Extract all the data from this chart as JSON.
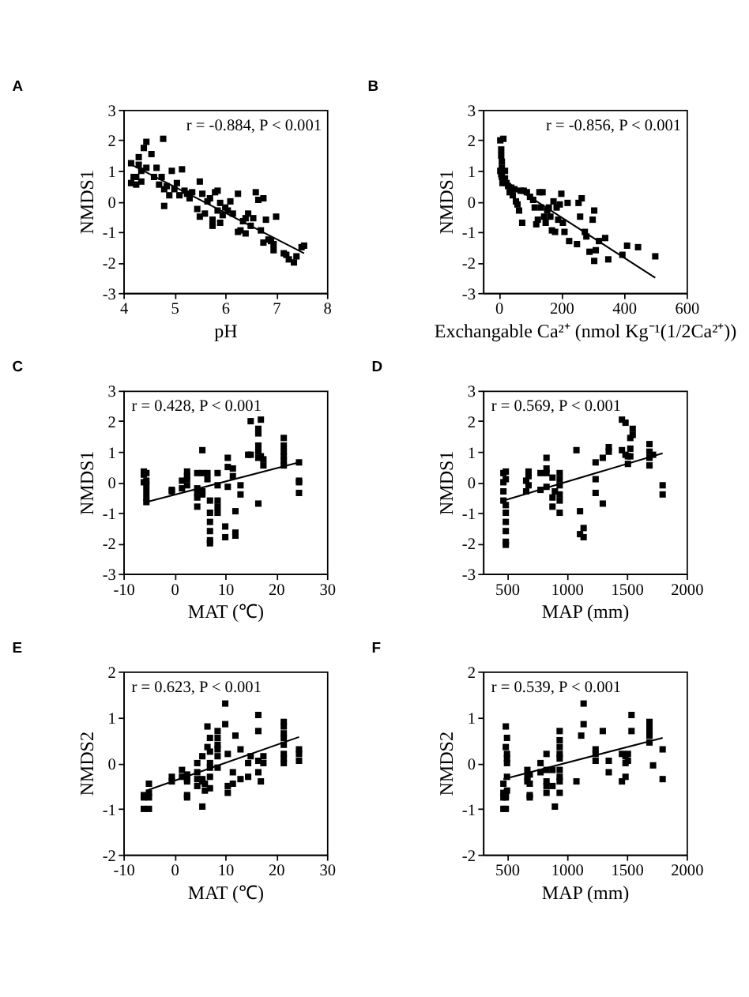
{
  "chart_data": [
    {
      "type": "scatter",
      "title": "A",
      "xlabel": "pH",
      "ylabel": "NMDS1",
      "xlim": [
        4,
        8
      ],
      "xticks": [
        4,
        5,
        6,
        7,
        8
      ],
      "ylim": [
        -3,
        3
      ],
      "yticks": [
        -3,
        -2,
        -1,
        0,
        1,
        2,
        3
      ],
      "grid": false,
      "marker": "square",
      "annotations": [
        "r = -0.884, P < 0.001"
      ],
      "series": [
        {
          "type": "scatter",
          "color": "#000000",
          "x": [
            4.15,
            4.15,
            4.2,
            4.25,
            4.25,
            4.3,
            4.3,
            4.35,
            4.35,
            4.4,
            4.45,
            4.45,
            4.55,
            4.6,
            4.65,
            4.7,
            4.75,
            4.78,
            4.8,
            4.8,
            4.85,
            4.9,
            4.95,
            5.0,
            5.05,
            5.1,
            5.15,
            5.2,
            5.25,
            5.3,
            5.35,
            5.45,
            5.5,
            5.5,
            5.55,
            5.6,
            5.65,
            5.7,
            5.75,
            5.75,
            5.8,
            5.85,
            5.85,
            5.9,
            5.9,
            5.95,
            6.0,
            6.05,
            6.1,
            6.15,
            6.25,
            6.25,
            6.3,
            6.35,
            6.4,
            6.4,
            6.45,
            6.5,
            6.55,
            6.6,
            6.65,
            6.7,
            6.75,
            6.75,
            6.8,
            6.85,
            6.9,
            6.95,
            6.95,
            7.0,
            7.15,
            7.2,
            7.25,
            7.35,
            7.4,
            7.5,
            7.55
          ],
          "values": [
            1.25,
            0.6,
            0.8,
            0.8,
            0.55,
            1.45,
            1.2,
            1.0,
            0.65,
            1.75,
            1.95,
            1.1,
            1.55,
            0.8,
            1.1,
            0.55,
            0.8,
            2.05,
            0.4,
            -0.15,
            0.5,
            0.2,
            1.0,
            0.4,
            0.6,
            0.2,
            1.05,
            0.35,
            0.25,
            0.1,
            0.3,
            -0.25,
            0.65,
            -0.5,
            0.25,
            -0.4,
            0.0,
            0.1,
            -0.6,
            -0.8,
            0.3,
            0.35,
            -0.3,
            -0.7,
            -0.05,
            -0.45,
            -0.2,
            -0.3,
            0.0,
            -0.4,
            0.25,
            -1.0,
            -0.95,
            -0.65,
            -1.05,
            -0.55,
            -0.4,
            -0.8,
            -0.55,
            0.3,
            0.05,
            -0.95,
            -1.35,
            0.1,
            -0.6,
            -1.25,
            -1.3,
            -1.6,
            -1.4,
            -0.5,
            -1.7,
            -1.75,
            -1.9,
            -2.0,
            -1.8,
            -1.5,
            -1.45
          ]
        },
        {
          "type": "line",
          "marker": "none",
          "color": "#000000",
          "x": [
            4.1,
            7.55
          ],
          "values": [
            1.25,
            -1.7
          ]
        }
      ]
    },
    {
      "type": "scatter",
      "title": "B",
      "xlabel": "Exchangable Ca²⁺ (nmol Kg⁻¹(1/2Ca²⁺))",
      "ylabel": "NMDS1",
      "xlim": [
        -50,
        600
      ],
      "xticks": [
        0,
        200,
        400,
        600
      ],
      "ylim": [
        -3,
        3
      ],
      "yticks": [
        -3,
        -2,
        -1,
        0,
        1,
        2,
        3
      ],
      "grid": false,
      "marker": "square",
      "annotations": [
        "r = -0.856, P < 0.001"
      ],
      "series": [
        {
          "type": "scatter",
          "color": "#000000",
          "x": [
            5,
            8,
            8,
            10,
            10,
            5,
            8,
            10,
            12,
            15,
            20,
            20,
            25,
            30,
            35,
            40,
            45,
            50,
            55,
            60,
            65,
            70,
            75,
            80,
            90,
            100,
            110,
            115,
            120,
            125,
            130,
            135,
            140,
            145,
            150,
            155,
            160,
            165,
            170,
            175,
            180,
            185,
            190,
            195,
            200,
            205,
            210,
            220,
            225,
            250,
            255,
            260,
            265,
            275,
            280,
            290,
            300,
            305,
            305,
            310,
            320,
            340,
            350,
            395,
            410,
            445,
            500
          ],
          "values": [
            2.0,
            1.7,
            1.5,
            1.3,
            1.1,
            1.0,
            0.9,
            0.8,
            0.6,
            2.05,
            1.0,
            0.75,
            0.6,
            0.5,
            0.3,
            0.45,
            0.2,
            0.4,
            0.0,
            -0.1,
            -0.3,
            0.35,
            -0.7,
            0.35,
            0.3,
            0.15,
            0.05,
            -0.2,
            -0.75,
            -0.6,
            0.3,
            -0.2,
            0.3,
            -0.5,
            -0.7,
            -0.3,
            -0.2,
            -0.5,
            -0.95,
            0.0,
            -1.0,
            -0.2,
            -0.6,
            -0.1,
            0.25,
            -0.7,
            -1.0,
            -0.05,
            -1.3,
            -1.4,
            -0.05,
            -0.5,
            0.1,
            -1.0,
            -1.15,
            -1.65,
            -0.6,
            -1.95,
            -0.3,
            -1.6,
            -1.3,
            -1.2,
            -1.9,
            -1.75,
            -1.45,
            -1.5,
            -1.8
          ]
        },
        {
          "type": "line",
          "marker": "none",
          "color": "#000000",
          "x": [
            0,
            500
          ],
          "values": [
            0.8,
            -2.5
          ]
        }
      ]
    },
    {
      "type": "scatter",
      "title": "C",
      "xlabel": "MAT (℃)",
      "ylabel": "NMDS1",
      "xlim": [
        -10,
        30
      ],
      "xticks": [
        -10,
        0,
        10,
        20,
        30
      ],
      "ylim": [
        -3,
        3
      ],
      "yticks": [
        -3,
        -2,
        -1,
        0,
        1,
        2,
        3
      ],
      "grid": false,
      "marker": "square",
      "annotations": [
        "r = 0.428, P < 0.001"
      ],
      "series": [
        {
          "type": "scatter",
          "color": "#000000",
          "x": [
            -6,
            -6,
            -6,
            -5.5,
            -5.5,
            -5.5,
            -5.5,
            -5.5,
            -5.5,
            -0.5,
            -0.5,
            1.5,
            1.5,
            2.5,
            2.5,
            2.5,
            2.5,
            4.5,
            4.5,
            4.5,
            4.5,
            4.5,
            5.5,
            5.5,
            5.5,
            5.5,
            6.5,
            6.5,
            7,
            7,
            7,
            7,
            7,
            7,
            8.5,
            8.5,
            8.5,
            8.5,
            8.5,
            10,
            10,
            10.5,
            10.5,
            10.5,
            11.5,
            11.5,
            12,
            12,
            12,
            13,
            13,
            14.5,
            15,
            15,
            16.5,
            16.5,
            16.5,
            16.5,
            16.5,
            16.5,
            17,
            17,
            17.5,
            17.5,
            21.5,
            21.5,
            21.5,
            21.5,
            21.5,
            21.5,
            24.5,
            24.5,
            24.5,
            24.5
          ],
          "values": [
            0.35,
            0.25,
            0.0,
            0.3,
            -0.1,
            -0.3,
            -0.5,
            -0.65,
            0.05,
            -0.25,
            -0.3,
            0.05,
            -0.2,
            0.35,
            0.2,
            0.1,
            -0.1,
            0.3,
            -0.2,
            -0.35,
            -0.5,
            -0.8,
            1.05,
            0.3,
            -0.3,
            -0.4,
            0.3,
            0.1,
            -0.6,
            -1.0,
            -1.3,
            -1.6,
            -1.9,
            -2.0,
            0.3,
            -0.1,
            -0.6,
            -0.8,
            -1.0,
            -1.45,
            -1.8,
            0.8,
            0.5,
            -0.15,
            0.45,
            0.2,
            -0.95,
            -1.65,
            -1.75,
            -0.1,
            -0.4,
            0.9,
            2.0,
            0.9,
            1.75,
            1.6,
            1.2,
            1.0,
            0.8,
            -0.7,
            2.05,
            0.85,
            0.75,
            0.55,
            1.45,
            1.2,
            1.0,
            0.85,
            0.7,
            0.55,
            0.65,
            0.05,
            0.0,
            -0.35
          ]
        },
        {
          "type": "line",
          "marker": "none",
          "color": "#000000",
          "x": [
            -5.5,
            24.5
          ],
          "values": [
            -0.65,
            0.65
          ]
        }
      ]
    },
    {
      "type": "scatter",
      "title": "D",
      "xlabel": "MAP (mm)",
      "ylabel": "NMDS1",
      "xlim": [
        300,
        2000
      ],
      "xticks": [
        500,
        1000,
        1500,
        2000
      ],
      "ylim": [
        -3,
        3
      ],
      "yticks": [
        -3,
        -2,
        -1,
        0,
        1,
        2,
        3
      ],
      "grid": false,
      "marker": "square",
      "annotations": [
        "r = 0.569, P < 0.001"
      ],
      "series": [
        {
          "type": "scatter",
          "color": "#000000",
          "x": [
            470,
            470,
            470,
            470,
            490,
            490,
            490,
            490,
            490,
            490,
            490,
            490,
            660,
            660,
            680,
            680,
            680,
            780,
            780,
            830,
            830,
            830,
            830,
            880,
            880,
            880,
            900,
            940,
            940,
            940,
            940,
            940,
            940,
            1080,
            1110,
            1110,
            1140,
            1140,
            1240,
            1240,
            1240,
            1300,
            1300,
            1350,
            1350,
            1460,
            1460,
            1490,
            1490,
            1510,
            1510,
            1530,
            1530,
            1530,
            1550,
            1550,
            1690,
            1690,
            1690,
            1690,
            1720,
            1800,
            1800
          ],
          "values": [
            0.3,
            0.0,
            -0.3,
            -0.6,
            0.35,
            0.1,
            -0.75,
            -1.0,
            -1.3,
            -1.6,
            -1.95,
            -2.05,
            0.05,
            -0.3,
            0.35,
            0.2,
            -0.1,
            0.3,
            -0.25,
            0.8,
            0.45,
            0.3,
            -0.15,
            0.15,
            -0.5,
            -0.8,
            -0.3,
            0.3,
            0.1,
            -0.1,
            -0.4,
            -0.6,
            -1.0,
            1.05,
            -0.95,
            -1.7,
            -1.5,
            -1.8,
            0.65,
            0.1,
            -0.35,
            0.8,
            -0.7,
            1.15,
            1.0,
            2.05,
            1.05,
            1.95,
            0.9,
            0.85,
            0.6,
            1.45,
            1.1,
            0.85,
            1.75,
            1.55,
            1.25,
            1.0,
            0.8,
            0.55,
            0.9,
            -0.1,
            -0.4
          ]
        },
        {
          "type": "line",
          "marker": "none",
          "color": "#000000",
          "x": [
            480,
            1800
          ],
          "values": [
            -0.59,
            0.95
          ]
        }
      ]
    },
    {
      "type": "scatter",
      "title": "E",
      "xlabel": "MAT (℃)",
      "ylabel": "NMDS2",
      "xlim": [
        -10,
        30
      ],
      "xticks": [
        -10,
        0,
        10,
        20,
        30
      ],
      "ylim": [
        -2,
        2
      ],
      "yticks": [
        -2,
        -1,
        0,
        1,
        2
      ],
      "grid": false,
      "marker": "square",
      "annotations": [
        "r = 0.623, P < 0.001"
      ],
      "series": [
        {
          "type": "scatter",
          "color": "#000000",
          "x": [
            -6,
            -6,
            -6,
            -5,
            -5,
            -5,
            -5,
            -0.5,
            -0.5,
            1.5,
            1.5,
            2.5,
            2.5,
            2.5,
            2.5,
            2.5,
            4.5,
            4.5,
            4.5,
            4.5,
            5.5,
            5.5,
            5.5,
            5.5,
            6,
            6,
            6.5,
            6.5,
            7,
            7,
            7,
            7,
            7,
            7,
            8.5,
            8.5,
            8.5,
            8.5,
            8.5,
            8.5,
            10,
            10,
            10.5,
            10.5,
            10.5,
            11.5,
            11.5,
            12,
            13,
            13,
            14.5,
            14.5,
            15,
            16.5,
            16.5,
            16.5,
            16.5,
            17,
            17.5,
            17.5,
            21.5,
            21.5,
            21.5,
            21.5,
            21.5,
            21.5,
            21.5,
            21.5,
            24.5,
            24.5,
            24.5
          ],
          "values": [
            -0.7,
            -1.0,
            -0.75,
            -0.45,
            -0.65,
            -1.0,
            -0.75,
            -0.3,
            -0.4,
            -0.15,
            -0.3,
            -0.25,
            -0.35,
            -0.4,
            -0.7,
            -0.75,
            0.0,
            -0.2,
            -0.35,
            -0.5,
            -0.95,
            -0.35,
            -0.4,
            0.15,
            -0.6,
            -0.45,
            0.8,
            0.35,
            0.55,
            0.25,
            0.0,
            -0.1,
            -0.3,
            -0.55,
            0.7,
            0.55,
            0.4,
            0.3,
            0.15,
            -0.1,
            1.3,
            0.85,
            0.2,
            -0.5,
            -0.65,
            -0.2,
            -0.45,
            0.6,
            0.3,
            -0.35,
            0.0,
            -0.3,
            0.15,
            1.05,
            0.7,
            0.05,
            -0.2,
            -0.4,
            0.15,
            0.0,
            0.9,
            0.8,
            0.65,
            0.55,
            0.4,
            0.2,
            0.1,
            0.0,
            0.3,
            0.2,
            0.05
          ]
        },
        {
          "type": "line",
          "marker": "none",
          "color": "#000000",
          "x": [
            -5.5,
            24.5
          ],
          "values": [
            -0.6,
            0.57
          ]
        }
      ]
    },
    {
      "type": "scatter",
      "title": "F",
      "xlabel": "MAP (mm)",
      "ylabel": "NMDS2",
      "xlim": [
        300,
        2000
      ],
      "xticks": [
        500,
        1000,
        1500,
        2000
      ],
      "ylim": [
        -2,
        2
      ],
      "yticks": [
        -2,
        -1,
        0,
        1,
        2
      ],
      "grid": false,
      "marker": "square",
      "annotations": [
        "r = 0.539, P < 0.001"
      ],
      "series": [
        {
          "type": "scatter",
          "color": "#000000",
          "x": [
            470,
            470,
            470,
            470,
            490,
            490,
            490,
            490,
            490,
            500,
            500,
            500,
            500,
            500,
            500,
            670,
            670,
            670,
            690,
            690,
            690,
            690,
            780,
            780,
            830,
            830,
            830,
            830,
            830,
            880,
            880,
            900,
            940,
            940,
            940,
            940,
            940,
            940,
            940,
            940,
            940,
            1080,
            1120,
            1140,
            1140,
            1240,
            1240,
            1240,
            1300,
            1350,
            1350,
            1460,
            1460,
            1490,
            1490,
            1490,
            1510,
            1510,
            1540,
            1540,
            1690,
            1690,
            1690,
            1690,
            1690,
            1720,
            1800,
            1800
          ],
          "values": [
            -0.45,
            -0.65,
            -0.75,
            -1.0,
            0.8,
            0.35,
            -0.7,
            -0.75,
            -1.0,
            0.55,
            0.2,
            0.1,
            0.0,
            -0.3,
            -0.6,
            -0.15,
            -0.3,
            -0.4,
            -0.25,
            -0.45,
            -0.7,
            -0.75,
            0.0,
            -0.2,
            0.2,
            -0.15,
            -0.4,
            -0.5,
            -0.65,
            -0.15,
            -0.5,
            -0.95,
            0.7,
            0.5,
            0.35,
            0.2,
            0.1,
            -0.15,
            -0.3,
            -0.4,
            -0.65,
            -0.4,
            0.6,
            1.3,
            0.85,
            0.3,
            0.2,
            0.05,
            0.7,
            0.05,
            -0.2,
            0.2,
            -0.4,
            0.15,
            0.0,
            -0.3,
            0.2,
            0.05,
            1.05,
            0.7,
            0.9,
            0.8,
            0.7,
            0.6,
            0.45,
            -0.05,
            0.3,
            -0.35
          ]
        },
        {
          "type": "line",
          "marker": "none",
          "color": "#000000",
          "x": [
            470,
            1800
          ],
          "values": [
            -0.35,
            0.55
          ]
        }
      ]
    }
  ]
}
